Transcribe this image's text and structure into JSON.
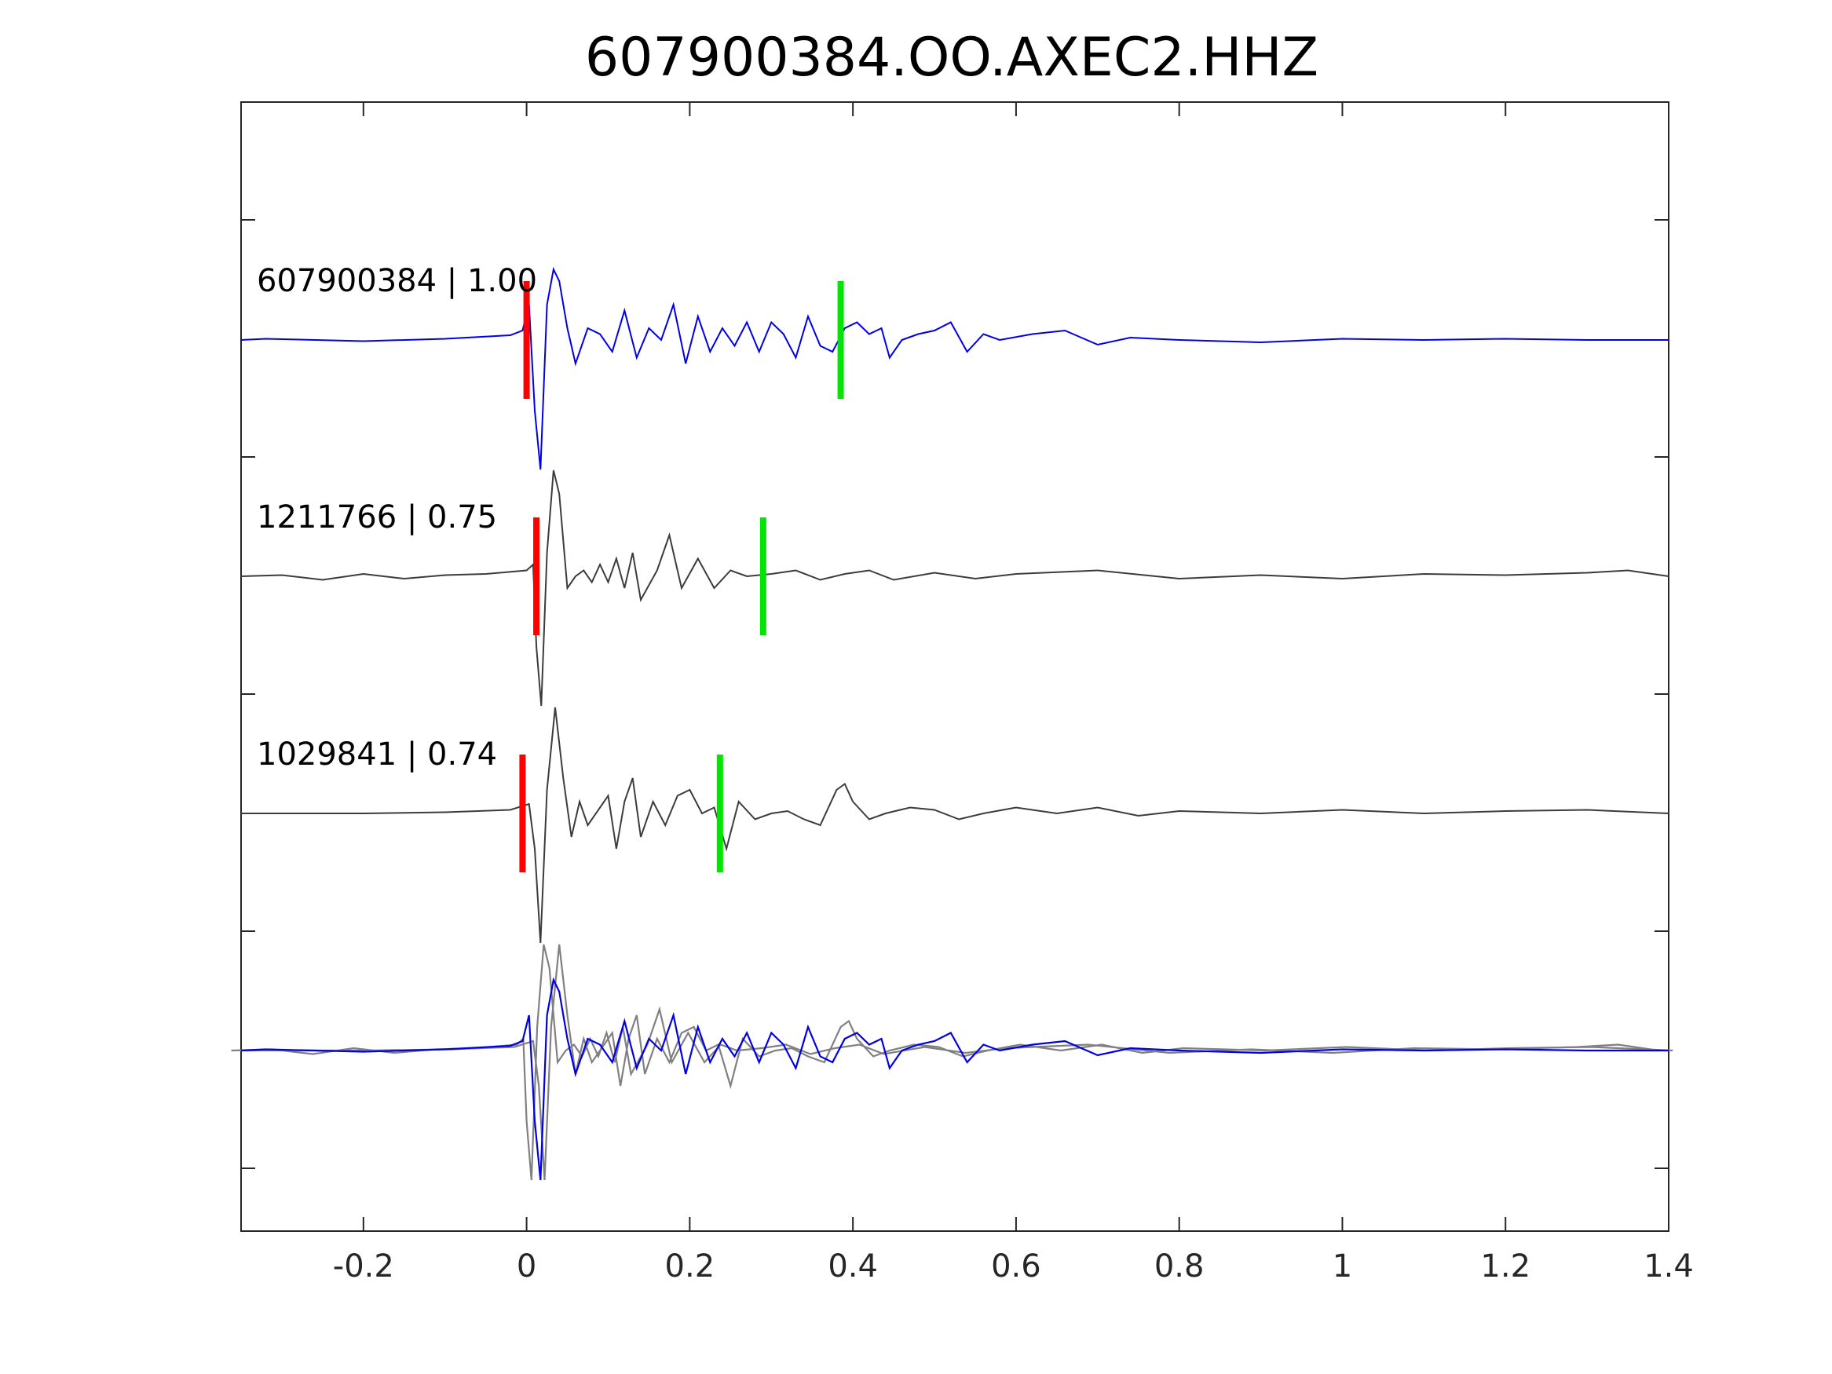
{
  "chart_data": {
    "type": "line",
    "title": "607900384.OO.AXEC2.HHZ",
    "xlabel": "",
    "ylabel": "",
    "xlim": [
      -0.35,
      1.4
    ],
    "x_ticks": [
      "-0.2",
      "0",
      "0.2",
      "0.4",
      "0.6",
      "0.8",
      "1",
      "1.2",
      "1.4"
    ],
    "x_tick_values": [
      -0.2,
      0,
      0.2,
      0.4,
      0.6,
      0.8,
      1,
      1.2,
      1.4
    ],
    "grid": false,
    "colors": {
      "target": "#0000e6",
      "neighbor": "#3c3c3c",
      "overlay_neighbor": "#808080",
      "p_pick": "#ff0000",
      "s_pick": "#00e600"
    },
    "traces": [
      {
        "label": "607900384 | 1.00",
        "id": "607900384",
        "correlation": 1.0,
        "color": "#0000e6",
        "p_pick": 0.0,
        "s_pick": 0.385,
        "points": [
          [
            -0.35,
            0
          ],
          [
            -0.32,
            0.01
          ],
          [
            -0.2,
            -0.01
          ],
          [
            -0.1,
            0.01
          ],
          [
            -0.02,
            0.04
          ],
          [
            -0.005,
            0.08
          ],
          [
            0.003,
            0.3
          ],
          [
            0.01,
            -0.6
          ],
          [
            0.017,
            -1.1
          ],
          [
            0.025,
            0.3
          ],
          [
            0.033,
            0.6
          ],
          [
            0.04,
            0.5
          ],
          [
            0.05,
            0.1
          ],
          [
            0.06,
            -0.2
          ],
          [
            0.075,
            0.1
          ],
          [
            0.09,
            0.05
          ],
          [
            0.105,
            -0.1
          ],
          [
            0.12,
            0.25
          ],
          [
            0.135,
            -0.15
          ],
          [
            0.15,
            0.1
          ],
          [
            0.165,
            0.0
          ],
          [
            0.18,
            0.3
          ],
          [
            0.195,
            -0.2
          ],
          [
            0.21,
            0.2
          ],
          [
            0.225,
            -0.1
          ],
          [
            0.24,
            0.1
          ],
          [
            0.255,
            -0.05
          ],
          [
            0.27,
            0.15
          ],
          [
            0.285,
            -0.1
          ],
          [
            0.3,
            0.15
          ],
          [
            0.315,
            0.05
          ],
          [
            0.33,
            -0.15
          ],
          [
            0.345,
            0.2
          ],
          [
            0.36,
            -0.05
          ],
          [
            0.375,
            -0.1
          ],
          [
            0.39,
            0.1
          ],
          [
            0.405,
            0.15
          ],
          [
            0.42,
            0.05
          ],
          [
            0.435,
            0.1
          ],
          [
            0.445,
            -0.15
          ],
          [
            0.46,
            0.0
          ],
          [
            0.48,
            0.05
          ],
          [
            0.5,
            0.08
          ],
          [
            0.52,
            0.15
          ],
          [
            0.54,
            -0.1
          ],
          [
            0.56,
            0.05
          ],
          [
            0.58,
            0.0
          ],
          [
            0.62,
            0.05
          ],
          [
            0.66,
            0.08
          ],
          [
            0.7,
            -0.04
          ],
          [
            0.74,
            0.02
          ],
          [
            0.8,
            0.0
          ],
          [
            0.9,
            -0.02
          ],
          [
            1.0,
            0.01
          ],
          [
            1.1,
            0.0
          ],
          [
            1.2,
            0.01
          ],
          [
            1.3,
            0.0
          ],
          [
            1.4,
            0.0
          ]
        ]
      },
      {
        "label": "1211766 | 0.75",
        "id": "1211766",
        "correlation": 0.75,
        "color": "#3c3c3c",
        "p_pick": 0.012,
        "s_pick": 0.29,
        "points": [
          [
            -0.35,
            0
          ],
          [
            -0.3,
            0.01
          ],
          [
            -0.25,
            -0.03
          ],
          [
            -0.2,
            0.02
          ],
          [
            -0.15,
            -0.02
          ],
          [
            -0.1,
            0.01
          ],
          [
            -0.05,
            0.02
          ],
          [
            0.0,
            0.05
          ],
          [
            0.008,
            0.1
          ],
          [
            0.012,
            -0.6
          ],
          [
            0.018,
            -1.1
          ],
          [
            0.025,
            0.2
          ],
          [
            0.033,
            0.9
          ],
          [
            0.04,
            0.7
          ],
          [
            0.05,
            -0.1
          ],
          [
            0.06,
            0.0
          ],
          [
            0.07,
            0.05
          ],
          [
            0.08,
            -0.05
          ],
          [
            0.09,
            0.1
          ],
          [
            0.1,
            -0.05
          ],
          [
            0.11,
            0.15
          ],
          [
            0.12,
            -0.1
          ],
          [
            0.13,
            0.2
          ],
          [
            0.14,
            -0.2
          ],
          [
            0.16,
            0.05
          ],
          [
            0.175,
            0.35
          ],
          [
            0.19,
            -0.1
          ],
          [
            0.21,
            0.15
          ],
          [
            0.23,
            -0.1
          ],
          [
            0.25,
            0.05
          ],
          [
            0.27,
            0.0
          ],
          [
            0.3,
            0.02
          ],
          [
            0.33,
            0.05
          ],
          [
            0.36,
            -0.03
          ],
          [
            0.39,
            0.02
          ],
          [
            0.42,
            0.05
          ],
          [
            0.45,
            -0.03
          ],
          [
            0.5,
            0.03
          ],
          [
            0.55,
            -0.02
          ],
          [
            0.6,
            0.02
          ],
          [
            0.7,
            0.05
          ],
          [
            0.8,
            -0.02
          ],
          [
            0.9,
            0.01
          ],
          [
            1.0,
            -0.02
          ],
          [
            1.1,
            0.02
          ],
          [
            1.2,
            0.01
          ],
          [
            1.3,
            0.03
          ],
          [
            1.35,
            0.05
          ],
          [
            1.4,
            0.0
          ]
        ]
      },
      {
        "label": "1029841 | 0.74",
        "id": "1029841",
        "correlation": 0.74,
        "color": "#3c3c3c",
        "p_pick": -0.005,
        "s_pick": 0.237,
        "points": [
          [
            -0.35,
            0
          ],
          [
            -0.2,
            0.0
          ],
          [
            -0.1,
            0.01
          ],
          [
            -0.02,
            0.03
          ],
          [
            0.003,
            0.08
          ],
          [
            0.01,
            -0.3
          ],
          [
            0.017,
            -1.1
          ],
          [
            0.025,
            0.2
          ],
          [
            0.035,
            0.9
          ],
          [
            0.045,
            0.3
          ],
          [
            0.055,
            -0.2
          ],
          [
            0.065,
            0.1
          ],
          [
            0.075,
            -0.1
          ],
          [
            0.09,
            0.05
          ],
          [
            0.1,
            0.15
          ],
          [
            0.11,
            -0.3
          ],
          [
            0.12,
            0.1
          ],
          [
            0.13,
            0.3
          ],
          [
            0.14,
            -0.2
          ],
          [
            0.155,
            0.1
          ],
          [
            0.17,
            -0.1
          ],
          [
            0.185,
            0.15
          ],
          [
            0.2,
            0.2
          ],
          [
            0.215,
            0.0
          ],
          [
            0.23,
            0.05
          ],
          [
            0.245,
            -0.3
          ],
          [
            0.26,
            0.1
          ],
          [
            0.28,
            -0.05
          ],
          [
            0.3,
            0.0
          ],
          [
            0.32,
            0.02
          ],
          [
            0.34,
            -0.05
          ],
          [
            0.36,
            -0.1
          ],
          [
            0.38,
            0.2
          ],
          [
            0.39,
            0.25
          ],
          [
            0.4,
            0.1
          ],
          [
            0.42,
            -0.05
          ],
          [
            0.44,
            0.0
          ],
          [
            0.47,
            0.05
          ],
          [
            0.5,
            0.03
          ],
          [
            0.53,
            -0.05
          ],
          [
            0.56,
            0.0
          ],
          [
            0.6,
            0.05
          ],
          [
            0.65,
            0.0
          ],
          [
            0.7,
            0.05
          ],
          [
            0.75,
            -0.02
          ],
          [
            0.8,
            0.02
          ],
          [
            0.9,
            0.0
          ],
          [
            1.0,
            0.03
          ],
          [
            1.1,
            0.0
          ],
          [
            1.2,
            0.02
          ],
          [
            1.3,
            0.03
          ],
          [
            1.4,
            0.0
          ]
        ]
      }
    ]
  }
}
